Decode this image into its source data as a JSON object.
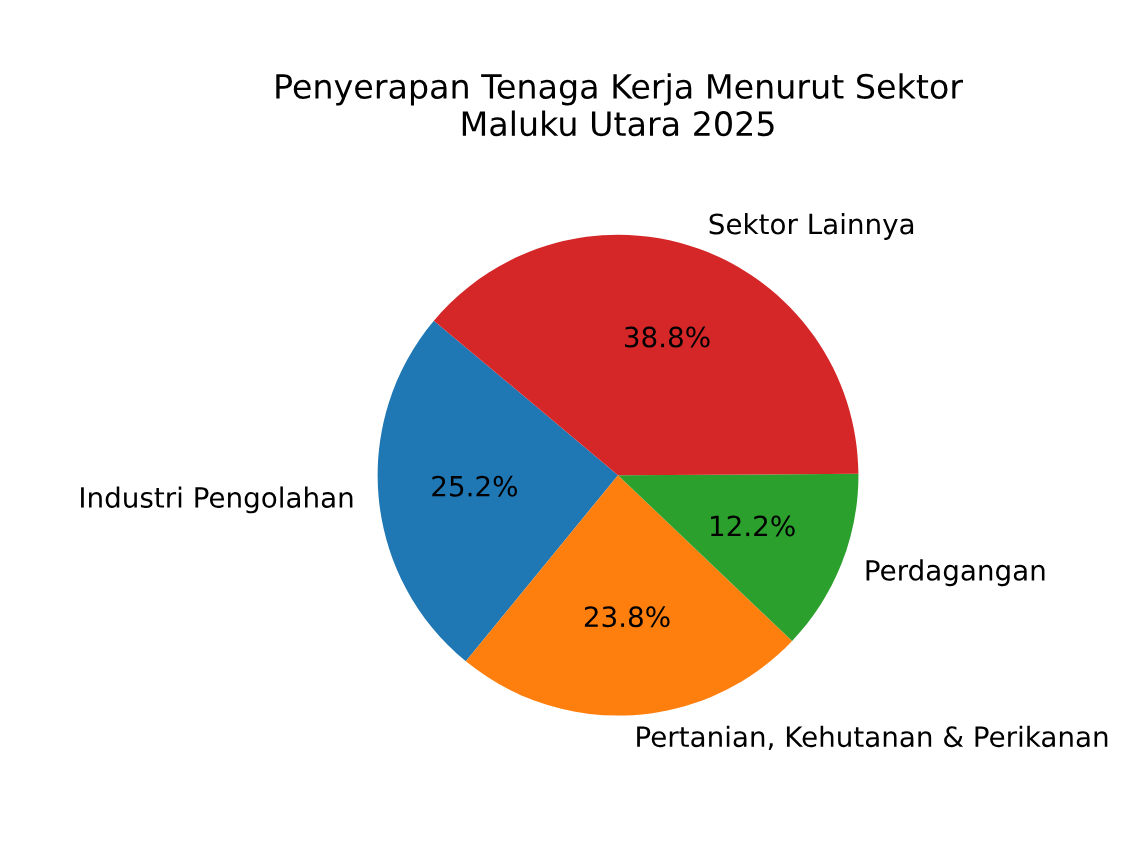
{
  "chart_data": {
    "type": "pie",
    "title": "Penyerapan Tenaga Kerja Menurut Sektor\nMaluku Utara 2025",
    "categories": [
      "Industri Pengolahan",
      "Pertanian, Kehutanan & Perikanan",
      "Perdagangan",
      "Sektor Lainnya"
    ],
    "values": [
      25.2,
      23.8,
      12.2,
      38.8
    ],
    "value_labels": [
      "25.2%",
      "23.8%",
      "12.2%",
      "38.8%"
    ],
    "colors": [
      "#1f77b4",
      "#ff7f0e",
      "#2ca02c",
      "#d62728"
    ]
  }
}
